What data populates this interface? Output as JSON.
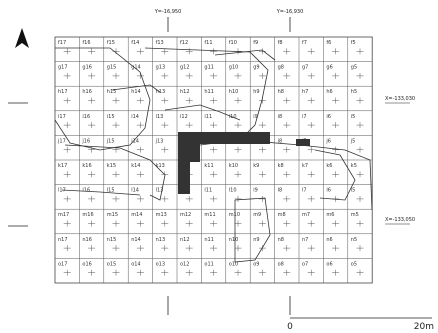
{
  "map": {
    "grid_columns": [
      "17",
      "16",
      "15",
      "14",
      "13",
      "12",
      "11",
      "10",
      "9",
      "8",
      "7",
      "6",
      "5"
    ],
    "grid_rows": [
      "f",
      "g",
      "h",
      "i",
      "j",
      "k",
      "l",
      "m",
      "n",
      "o"
    ],
    "coord_labels": {
      "y_left": "Y=-16,950",
      "y_right": "Y=-16,930",
      "x_upper": "X=-133,030",
      "x_lower": "X=-133,050"
    },
    "scale": {
      "zero": "0",
      "end": "20m"
    },
    "north_arrow": "north-arrow-icon",
    "colors": {
      "line": "#444444",
      "fill": "#333333",
      "paper": "#ffffff"
    }
  }
}
